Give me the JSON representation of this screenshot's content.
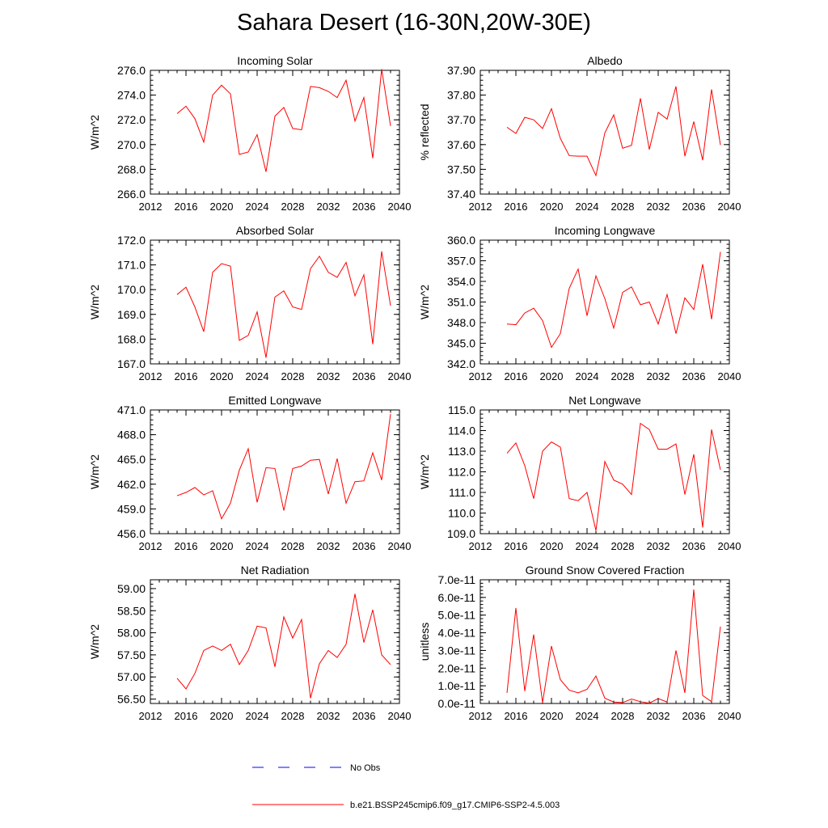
{
  "title": "Sahara Desert (16-30N,20W-30E)",
  "colors": {
    "model_line": "#ff0000",
    "obs_line": "#0000ff"
  },
  "legend": {
    "items": [
      {
        "label": "No Obs",
        "color": "#0000ff",
        "dash": true
      },
      {
        "label": "b.e21.BSSP245cmip6.f09_g17.CMIP6-SSP2-4.5.003",
        "color": "#ff0000",
        "dash": false
      }
    ]
  },
  "chart_data": [
    {
      "type": "line",
      "title": "Incoming Solar",
      "ylabel": "W/m^2",
      "xlim": [
        2012,
        2040
      ],
      "ylim": [
        266.0,
        276.0
      ],
      "xticks": [
        2012,
        2016,
        2020,
        2024,
        2028,
        2032,
        2036,
        2040
      ],
      "yticks": [
        "266.0",
        "268.0",
        "270.0",
        "272.0",
        "274.0",
        "276.0"
      ],
      "x": [
        2015,
        2016,
        2017,
        2018,
        2019,
        2020,
        2021,
        2022,
        2023,
        2024,
        2025,
        2026,
        2027,
        2028,
        2029,
        2030,
        2031,
        2032,
        2033,
        2034,
        2035,
        2036,
        2037,
        2038,
        2039
      ],
      "series": [
        {
          "values": [
            272.5,
            273.1,
            272.1,
            270.2,
            274.0,
            274.8,
            274.1,
            269.2,
            269.4,
            270.8,
            267.8,
            272.3,
            273.0,
            271.3,
            271.2,
            274.7,
            274.6,
            274.3,
            273.8,
            275.2,
            271.9,
            273.8,
            268.9,
            276.1,
            271.5
          ]
        }
      ]
    },
    {
      "type": "line",
      "title": "Albedo",
      "ylabel": "% reflected",
      "xlim": [
        2012,
        2040
      ],
      "ylim": [
        37.4,
        37.9
      ],
      "xticks": [
        2012,
        2016,
        2020,
        2024,
        2028,
        2032,
        2036,
        2040
      ],
      "yticks": [
        "37.40",
        "37.50",
        "37.60",
        "37.70",
        "37.80",
        "37.90"
      ],
      "x": [
        2015,
        2016,
        2017,
        2018,
        2019,
        2020,
        2021,
        2022,
        2023,
        2024,
        2025,
        2026,
        2027,
        2028,
        2029,
        2030,
        2031,
        2032,
        2033,
        2034,
        2035,
        2036,
        2037,
        2038,
        2039
      ],
      "series": [
        {
          "values": [
            37.67,
            37.645,
            37.71,
            37.7,
            37.665,
            37.745,
            37.625,
            37.555,
            37.553,
            37.553,
            37.475,
            37.647,
            37.72,
            37.585,
            37.597,
            37.787,
            37.58,
            37.73,
            37.703,
            37.835,
            37.553,
            37.693,
            37.537,
            37.823,
            37.598
          ]
        }
      ]
    },
    {
      "type": "line",
      "title": "Absorbed Solar",
      "ylabel": "W/m^2",
      "xlim": [
        2012,
        2040
      ],
      "ylim": [
        167.0,
        172.0
      ],
      "xticks": [
        2012,
        2016,
        2020,
        2024,
        2028,
        2032,
        2036,
        2040
      ],
      "yticks": [
        "167.0",
        "168.0",
        "169.0",
        "170.0",
        "171.0",
        "172.0"
      ],
      "x": [
        2015,
        2016,
        2017,
        2018,
        2019,
        2020,
        2021,
        2022,
        2023,
        2024,
        2025,
        2026,
        2027,
        2028,
        2029,
        2030,
        2031,
        2032,
        2033,
        2034,
        2035,
        2036,
        2037,
        2038,
        2039
      ],
      "series": [
        {
          "values": [
            169.8,
            170.1,
            169.3,
            168.3,
            170.7,
            171.05,
            170.95,
            167.95,
            168.15,
            169.1,
            167.25,
            169.7,
            169.95,
            169.3,
            169.2,
            170.85,
            171.35,
            170.7,
            170.5,
            171.1,
            169.75,
            170.6,
            167.8,
            171.55,
            169.35
          ]
        }
      ]
    },
    {
      "type": "line",
      "title": "Incoming Longwave",
      "ylabel": "W/m^2",
      "xlim": [
        2012,
        2040
      ],
      "ylim": [
        342.0,
        360.0
      ],
      "xticks": [
        2012,
        2016,
        2020,
        2024,
        2028,
        2032,
        2036,
        2040
      ],
      "yticks": [
        "342.0",
        "345.0",
        "348.0",
        "351.0",
        "354.0",
        "357.0",
        "360.0"
      ],
      "x": [
        2015,
        2016,
        2017,
        2018,
        2019,
        2020,
        2021,
        2022,
        2023,
        2024,
        2025,
        2026,
        2027,
        2028,
        2029,
        2030,
        2031,
        2032,
        2033,
        2034,
        2035,
        2036,
        2037,
        2038,
        2039
      ],
      "series": [
        {
          "values": [
            347.8,
            347.7,
            349.4,
            350.1,
            348.3,
            344.4,
            346.4,
            353.0,
            355.8,
            349.0,
            354.8,
            351.5,
            347.2,
            352.4,
            353.2,
            350.6,
            351.0,
            347.8,
            352.1,
            346.4,
            351.6,
            349.9,
            356.5,
            348.5,
            358.3
          ]
        }
      ]
    },
    {
      "type": "line",
      "title": "Emitted Longwave",
      "ylabel": "W/m^2",
      "xlim": [
        2012,
        2040
      ],
      "ylim": [
        456.0,
        471.0
      ],
      "xticks": [
        2012,
        2016,
        2020,
        2024,
        2028,
        2032,
        2036,
        2040
      ],
      "yticks": [
        "456.0",
        "459.0",
        "462.0",
        "465.0",
        "468.0",
        "471.0"
      ],
      "x": [
        2015,
        2016,
        2017,
        2018,
        2019,
        2020,
        2021,
        2022,
        2023,
        2024,
        2025,
        2026,
        2027,
        2028,
        2029,
        2030,
        2031,
        2032,
        2033,
        2034,
        2035,
        2036,
        2037,
        2038,
        2039
      ],
      "series": [
        {
          "values": [
            460.6,
            461.0,
            461.6,
            460.7,
            461.2,
            457.8,
            459.7,
            463.7,
            466.3,
            459.8,
            464.0,
            463.9,
            458.8,
            463.9,
            464.2,
            464.9,
            465.0,
            460.8,
            465.1,
            459.7,
            462.3,
            462.4,
            465.8,
            462.5,
            470.5
          ]
        }
      ]
    },
    {
      "type": "line",
      "title": "Net Longwave",
      "ylabel": "W/m^2",
      "xlim": [
        2012,
        2040
      ],
      "ylim": [
        109.0,
        115.0
      ],
      "xticks": [
        2012,
        2016,
        2020,
        2024,
        2028,
        2032,
        2036,
        2040
      ],
      "yticks": [
        "109.0",
        "110.0",
        "111.0",
        "112.0",
        "113.0",
        "114.0",
        "115.0"
      ],
      "x": [
        2015,
        2016,
        2017,
        2018,
        2019,
        2020,
        2021,
        2022,
        2023,
        2024,
        2025,
        2026,
        2027,
        2028,
        2029,
        2030,
        2031,
        2032,
        2033,
        2034,
        2035,
        2036,
        2037,
        2038,
        2039
      ],
      "series": [
        {
          "values": [
            112.9,
            113.4,
            112.3,
            110.7,
            113.0,
            113.45,
            113.2,
            110.7,
            110.6,
            111.0,
            109.15,
            112.5,
            111.6,
            111.4,
            110.9,
            114.35,
            114.05,
            113.1,
            113.1,
            113.35,
            110.9,
            112.85,
            109.3,
            114.05,
            112.1
          ]
        }
      ]
    },
    {
      "type": "line",
      "title": "Net Radiation",
      "ylabel": "W/m^2",
      "xlim": [
        2012,
        2040
      ],
      "ylim": [
        56.4,
        59.2
      ],
      "xticks": [
        2012,
        2016,
        2020,
        2024,
        2028,
        2032,
        2036,
        2040
      ],
      "yticks": [
        "56.50",
        "57.00",
        "57.50",
        "58.00",
        "58.50",
        "59.00"
      ],
      "x": [
        2015,
        2016,
        2017,
        2018,
        2019,
        2020,
        2021,
        2022,
        2023,
        2024,
        2025,
        2026,
        2027,
        2028,
        2029,
        2030,
        2031,
        2032,
        2033,
        2034,
        2035,
        2036,
        2037,
        2038,
        2039
      ],
      "series": [
        {
          "values": [
            56.97,
            56.73,
            57.08,
            57.6,
            57.7,
            57.6,
            57.74,
            57.28,
            57.6,
            58.15,
            58.11,
            57.23,
            58.36,
            57.88,
            58.3,
            56.52,
            57.3,
            57.6,
            57.44,
            57.74,
            58.88,
            57.78,
            58.52,
            57.5,
            57.28
          ]
        }
      ]
    },
    {
      "type": "line",
      "title": "Ground Snow Covered Fraction",
      "ylabel": "unitless",
      "xlim": [
        2012,
        2040
      ],
      "ylim": [
        0,
        7e-11
      ],
      "xticks": [
        2012,
        2016,
        2020,
        2024,
        2028,
        2032,
        2036,
        2040
      ],
      "yticks": [
        "0.0e-11",
        "1.0e-11",
        "2.0e-11",
        "3.0e-11",
        "4.0e-11",
        "5.0e-11",
        "6.0e-11",
        "7.0e-11"
      ],
      "x": [
        2015,
        2016,
        2017,
        2018,
        2019,
        2020,
        2021,
        2022,
        2023,
        2024,
        2025,
        2026,
        2027,
        2028,
        2029,
        2030,
        2031,
        2032,
        2033,
        2034,
        2035,
        2036,
        2037,
        2038,
        2039
      ],
      "series": [
        {
          "values": [
            6e-12,
            5.4e-11,
            7e-12,
            3.9e-11,
            5e-13,
            3.25e-11,
            1.35e-11,
            7.5e-12,
            6e-12,
            8e-12,
            1.55e-11,
            3e-12,
            8e-13,
            5e-13,
            2.5e-12,
            1e-12,
            2e-13,
            2.8e-12,
            8e-13,
            3e-11,
            6e-12,
            6.45e-11,
            4.5e-12,
            1e-12,
            4.35e-11
          ]
        }
      ]
    }
  ]
}
